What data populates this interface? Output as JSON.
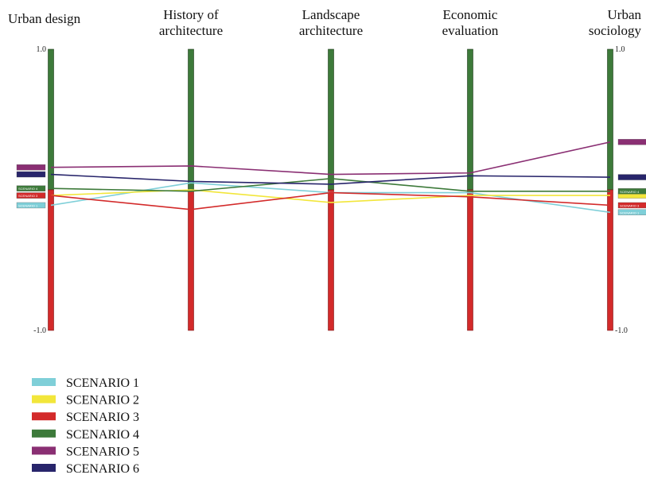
{
  "chart_data": {
    "type": "parallel-coordinates",
    "axes": [
      {
        "name": "Urban design",
        "lines": [
          "Urban design"
        ],
        "range": [
          -1.0,
          1.0
        ],
        "tick_labels": [
          "1.0",
          "-1.0"
        ],
        "positive_color": "#3d7a3a",
        "negative_color": "#d32a2a"
      },
      {
        "name": "History of architecture",
        "lines": [
          "History of",
          "architecture"
        ],
        "range": [
          -1.0,
          1.0
        ],
        "tick_labels": [
          "",
          ""
        ],
        "positive_color": "#3d7a3a",
        "negative_color": "#d32a2a"
      },
      {
        "name": "Landscape architecture",
        "lines": [
          "Landscape",
          "architecture"
        ],
        "range": [
          -1.0,
          1.0
        ],
        "tick_labels": [
          "",
          ""
        ],
        "positive_color": "#3d7a3a",
        "negative_color": "#d32a2a"
      },
      {
        "name": "Economic evaluation",
        "lines": [
          "Economic",
          "evaluation"
        ],
        "range": [
          -1.0,
          1.0
        ],
        "tick_labels": [
          "",
          ""
        ],
        "positive_color": "#3d7a3a",
        "negative_color": "#d32a2a"
      },
      {
        "name": "Urban sociology",
        "lines": [
          "Urban",
          "sociology"
        ],
        "range": [
          -1.0,
          1.0
        ],
        "tick_labels": [
          "1.0",
          "-1.0"
        ],
        "positive_color": "#3d7a3a",
        "negative_color": "#d32a2a"
      }
    ],
    "series": [
      {
        "name": "SCENARIO 1",
        "color": "#7fcfd8",
        "values": [
          -0.11,
          0.05,
          -0.02,
          -0.02,
          -0.16
        ]
      },
      {
        "name": "SCENARIO 2",
        "color": "#f2e63a",
        "values": [
          -0.04,
          0.0,
          -0.09,
          -0.04,
          -0.04
        ]
      },
      {
        "name": "SCENARIO 3",
        "color": "#d32a2a",
        "values": [
          -0.04,
          -0.14,
          -0.02,
          -0.05,
          -0.11
        ]
      },
      {
        "name": "SCENARIO 4",
        "color": "#3d7a3a",
        "values": [
          0.01,
          -0.01,
          0.08,
          -0.01,
          -0.01
        ]
      },
      {
        "name": "SCENARIO 5",
        "color": "#8a2f73",
        "values": [
          0.16,
          0.17,
          0.11,
          0.12,
          0.34
        ]
      },
      {
        "name": "SCENARIO 6",
        "color": "#28256b",
        "values": [
          0.11,
          0.06,
          0.04,
          0.1,
          0.09
        ]
      }
    ],
    "left_marker_labels": [
      "SCENARIO 4",
      "SCENARIO 3",
      "SCENARIO 1"
    ],
    "right_marker_labels": [
      "SCENARIO 4",
      "SCENARIO 3",
      "SCENARIO 1"
    ],
    "grid": false,
    "legend_position": "bottom-left"
  }
}
